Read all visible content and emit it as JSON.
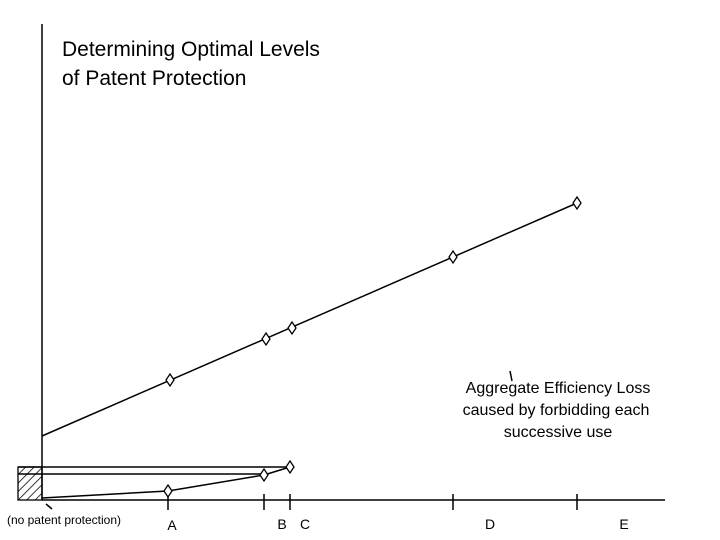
{
  "title_lines": [
    "Determining Optimal Levels",
    "of Patent Protection"
  ],
  "annotation_lines": [
    "Aggregate Efficiency Loss",
    "caused by forbidding each",
    "successive use"
  ],
  "x_labels": [
    "(no patent protection)",
    "A",
    "B",
    "C",
    "D",
    "E"
  ]
}
